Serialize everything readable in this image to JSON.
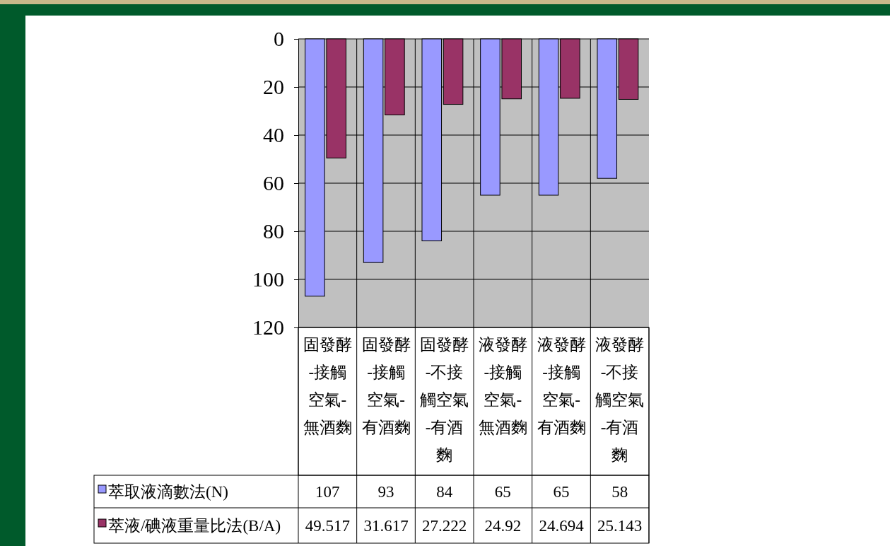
{
  "chart_data": {
    "type": "bar",
    "categories": [
      "固發酵-接觸空氣-無酒麴",
      "固發酵-接觸空氣-有酒麴",
      "固發酵-不接觸空氣-有酒麴",
      "液發酵-接觸空氣-無酒麴",
      "液發酵-接觸空氣-有酒麴",
      "液發酵-不接觸空氣-有酒麴"
    ],
    "series": [
      {
        "name": "萃取液滴數法(N)",
        "color": "#9999ff",
        "values": [
          107,
          93,
          84,
          65,
          65,
          58
        ]
      },
      {
        "name": "萃液/碘液重量比法(B/A)",
        "color": "#993366",
        "values": [
          49.517,
          31.617,
          27.222,
          24.92,
          24.694,
          25.143
        ]
      }
    ],
    "ylim": [
      120,
      0
    ],
    "yticks": [
      0,
      20,
      40,
      60,
      80,
      100,
      120
    ],
    "grid": "y",
    "legend": "bottom",
    "data_labels": true
  }
}
